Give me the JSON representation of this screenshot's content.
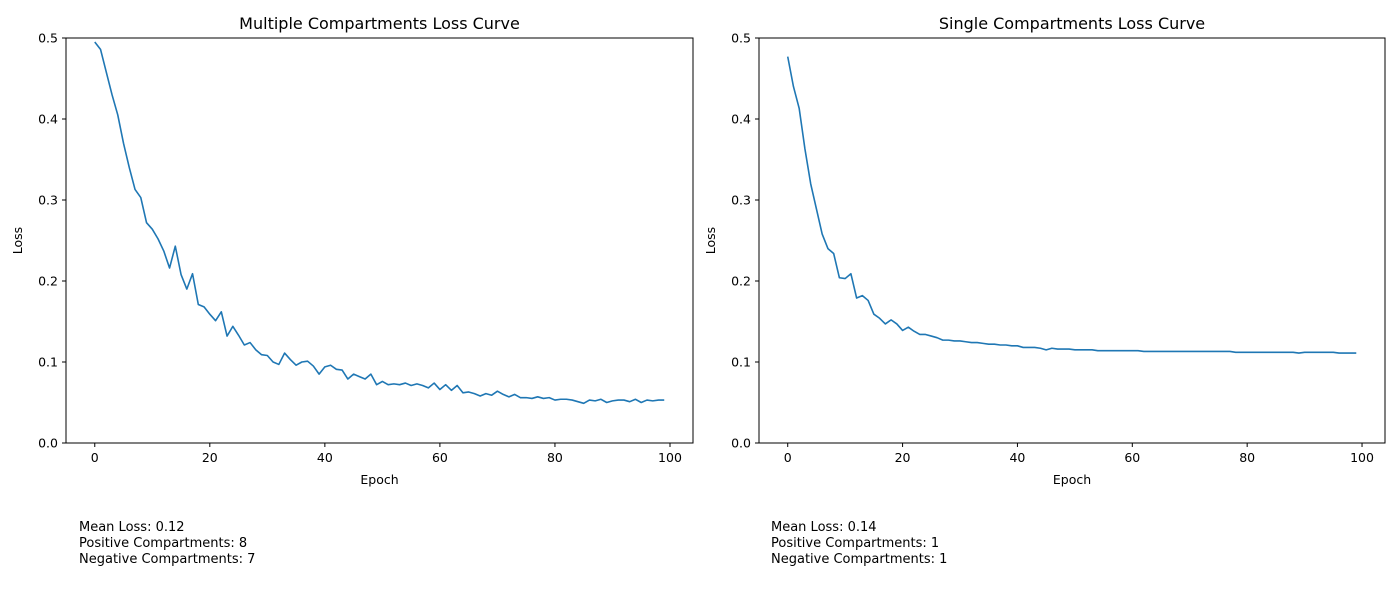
{
  "chart_data": [
    {
      "type": "line",
      "title": "Multiple Compartments Loss Curve",
      "xlabel": "Epoch",
      "ylabel": "Loss",
      "xlim": [
        -5,
        104
      ],
      "ylim": [
        0,
        0.5
      ],
      "xticks": [
        0,
        20,
        40,
        60,
        80,
        100
      ],
      "yticks": [
        0.0,
        0.1,
        0.2,
        0.3,
        0.4,
        0.5
      ],
      "grid": false,
      "line_color": "#1f77b4",
      "x_start": 0,
      "x_step": 1,
      "values": [
        0.495,
        0.486,
        0.458,
        0.43,
        0.405,
        0.37,
        0.34,
        0.313,
        0.303,
        0.272,
        0.264,
        0.252,
        0.237,
        0.216,
        0.243,
        0.208,
        0.19,
        0.209,
        0.171,
        0.168,
        0.159,
        0.151,
        0.162,
        0.132,
        0.144,
        0.133,
        0.121,
        0.124,
        0.115,
        0.109,
        0.108,
        0.1,
        0.097,
        0.111,
        0.103,
        0.096,
        0.1,
        0.101,
        0.095,
        0.085,
        0.094,
        0.096,
        0.091,
        0.09,
        0.079,
        0.085,
        0.082,
        0.079,
        0.085,
        0.072,
        0.076,
        0.072,
        0.073,
        0.072,
        0.074,
        0.071,
        0.073,
        0.071,
        0.068,
        0.074,
        0.066,
        0.072,
        0.065,
        0.071,
        0.062,
        0.063,
        0.061,
        0.058,
        0.061,
        0.059,
        0.064,
        0.06,
        0.057,
        0.06,
        0.056,
        0.056,
        0.055,
        0.057,
        0.055,
        0.056,
        0.053,
        0.054,
        0.054,
        0.053,
        0.051,
        0.049,
        0.053,
        0.052,
        0.054,
        0.05,
        0.052,
        0.053,
        0.053,
        0.051,
        0.054,
        0.05,
        0.053,
        0.052,
        0.053,
        0.053
      ]
    },
    {
      "type": "line",
      "title": "Single Compartments Loss Curve",
      "xlabel": "Epoch",
      "ylabel": "Loss",
      "xlim": [
        -5,
        104
      ],
      "ylim": [
        0,
        0.5
      ],
      "xticks": [
        0,
        20,
        40,
        60,
        80,
        100
      ],
      "yticks": [
        0.0,
        0.1,
        0.2,
        0.3,
        0.4,
        0.5
      ],
      "grid": false,
      "line_color": "#1f77b4",
      "x_start": 0,
      "x_step": 1,
      "values": [
        0.477,
        0.44,
        0.413,
        0.363,
        0.32,
        0.289,
        0.258,
        0.24,
        0.234,
        0.204,
        0.203,
        0.209,
        0.179,
        0.182,
        0.176,
        0.159,
        0.154,
        0.147,
        0.152,
        0.147,
        0.139,
        0.143,
        0.138,
        0.134,
        0.134,
        0.132,
        0.13,
        0.127,
        0.127,
        0.126,
        0.126,
        0.125,
        0.124,
        0.124,
        0.123,
        0.122,
        0.122,
        0.121,
        0.121,
        0.12,
        0.12,
        0.118,
        0.118,
        0.118,
        0.117,
        0.115,
        0.117,
        0.116,
        0.116,
        0.116,
        0.115,
        0.115,
        0.115,
        0.115,
        0.114,
        0.114,
        0.114,
        0.114,
        0.114,
        0.114,
        0.114,
        0.114,
        0.113,
        0.113,
        0.113,
        0.113,
        0.113,
        0.113,
        0.113,
        0.113,
        0.113,
        0.113,
        0.113,
        0.113,
        0.113,
        0.113,
        0.113,
        0.113,
        0.112,
        0.112,
        0.112,
        0.112,
        0.112,
        0.112,
        0.112,
        0.112,
        0.112,
        0.112,
        0.112,
        0.111,
        0.112,
        0.112,
        0.112,
        0.112,
        0.112,
        0.112,
        0.111,
        0.111,
        0.111,
        0.111
      ]
    }
  ],
  "stats": [
    {
      "mean_loss": "Mean Loss: 0.12",
      "positive": "Positive Compartments: 8",
      "negative": "Negative Compartments: 7"
    },
    {
      "mean_loss": "Mean Loss: 0.14",
      "positive": "Positive Compartments: 1",
      "negative": "Negative Compartments: 1"
    }
  ]
}
